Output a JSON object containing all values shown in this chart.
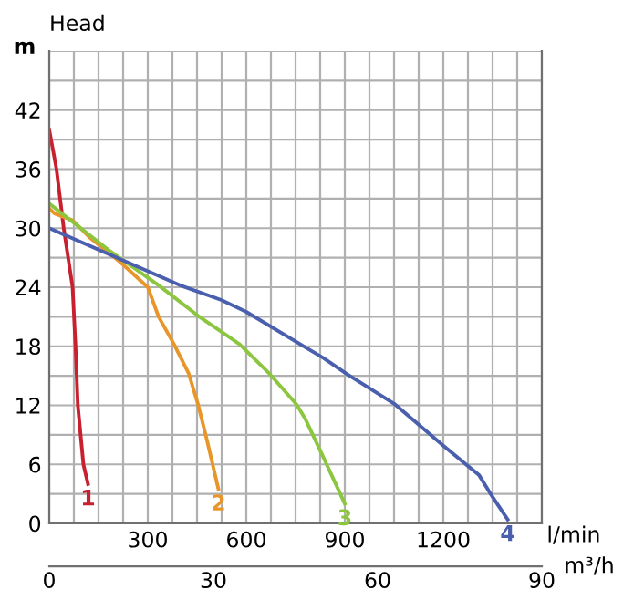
{
  "chart_data": {
    "type": "line",
    "title": "Head",
    "ylabel": "m",
    "xlabel": "l/min",
    "x2label": "m³/h",
    "xlim": [
      0,
      1500
    ],
    "ylim": [
      0,
      48
    ],
    "xticks": [
      {
        "value": 0,
        "label": null
      },
      {
        "value": 75,
        "label": null
      },
      {
        "value": 150,
        "label": null
      },
      {
        "value": 225,
        "label": null
      },
      300,
      {
        "value": 375,
        "label": null
      },
      {
        "value": 450,
        "label": null
      },
      {
        "value": 525,
        "label": null
      },
      600,
      {
        "value": 675,
        "label": null
      },
      {
        "value": 750,
        "label": null
      },
      {
        "value": 825,
        "label": null
      },
      900,
      {
        "value": 975,
        "label": null
      },
      {
        "value": 1050,
        "label": null
      },
      {
        "value": 1125,
        "label": null
      },
      1200,
      {
        "value": 1275,
        "label": null
      },
      {
        "value": 1350,
        "label": null
      },
      {
        "value": 1425,
        "label": null
      },
      {
        "value": 1500,
        "label": null
      }
    ],
    "yticks": [
      0,
      {
        "value": 3,
        "label": null
      },
      6,
      {
        "value": 9,
        "label": null
      },
      12,
      {
        "value": 15,
        "label": null
      },
      18,
      {
        "value": 21,
        "label": null
      },
      24,
      {
        "value": 27,
        "label": null
      },
      30,
      {
        "value": 33,
        "label": null
      },
      36,
      {
        "value": 39,
        "label": null
      },
      42,
      {
        "value": 45,
        "label": null
      },
      {
        "value": 48,
        "label": null
      }
    ],
    "x2lim": [
      0,
      90
    ],
    "x2ticks": [
      0,
      30,
      60,
      90
    ],
    "grid": true,
    "marker": "none",
    "line_style": "solid",
    "legend": false,
    "series": [
      {
        "name": "1",
        "color": "#c8202f",
        "x": [
          0,
          22,
          44,
          71,
          80,
          87,
          104,
          118
        ],
        "values": [
          40,
          36,
          30,
          24,
          18,
          12,
          6,
          4
        ]
      },
      {
        "name": "2",
        "color": "#e8962a",
        "x": [
          0,
          16,
          71,
          125,
          218,
          300,
          333,
          380,
          425,
          453,
          480,
          515
        ],
        "values": [
          32,
          31.5,
          30.8,
          29,
          26.5,
          24,
          21,
          18.2,
          15.2,
          12.1,
          8.5,
          3.5
        ]
      },
      {
        "name": "3",
        "color": "#8cc63f",
        "x": [
          0,
          180,
          333,
          453,
          580,
          671,
          753,
          780,
          835,
          900
        ],
        "values": [
          32.5,
          27.8,
          24.2,
          21.1,
          18.2,
          15.2,
          12.1,
          10.6,
          6.7,
          2
        ]
      },
      {
        "name": "4",
        "color": "#4a5fad",
        "x": [
          0,
          398,
          524,
          600,
          780,
          835,
          905,
          1053,
          1200,
          1309,
          1342,
          1396
        ],
        "values": [
          30,
          24.2,
          22.7,
          21.5,
          17.9,
          16.8,
          15.2,
          12.1,
          7.9,
          4.9,
          3.1,
          0.4
        ]
      }
    ]
  }
}
